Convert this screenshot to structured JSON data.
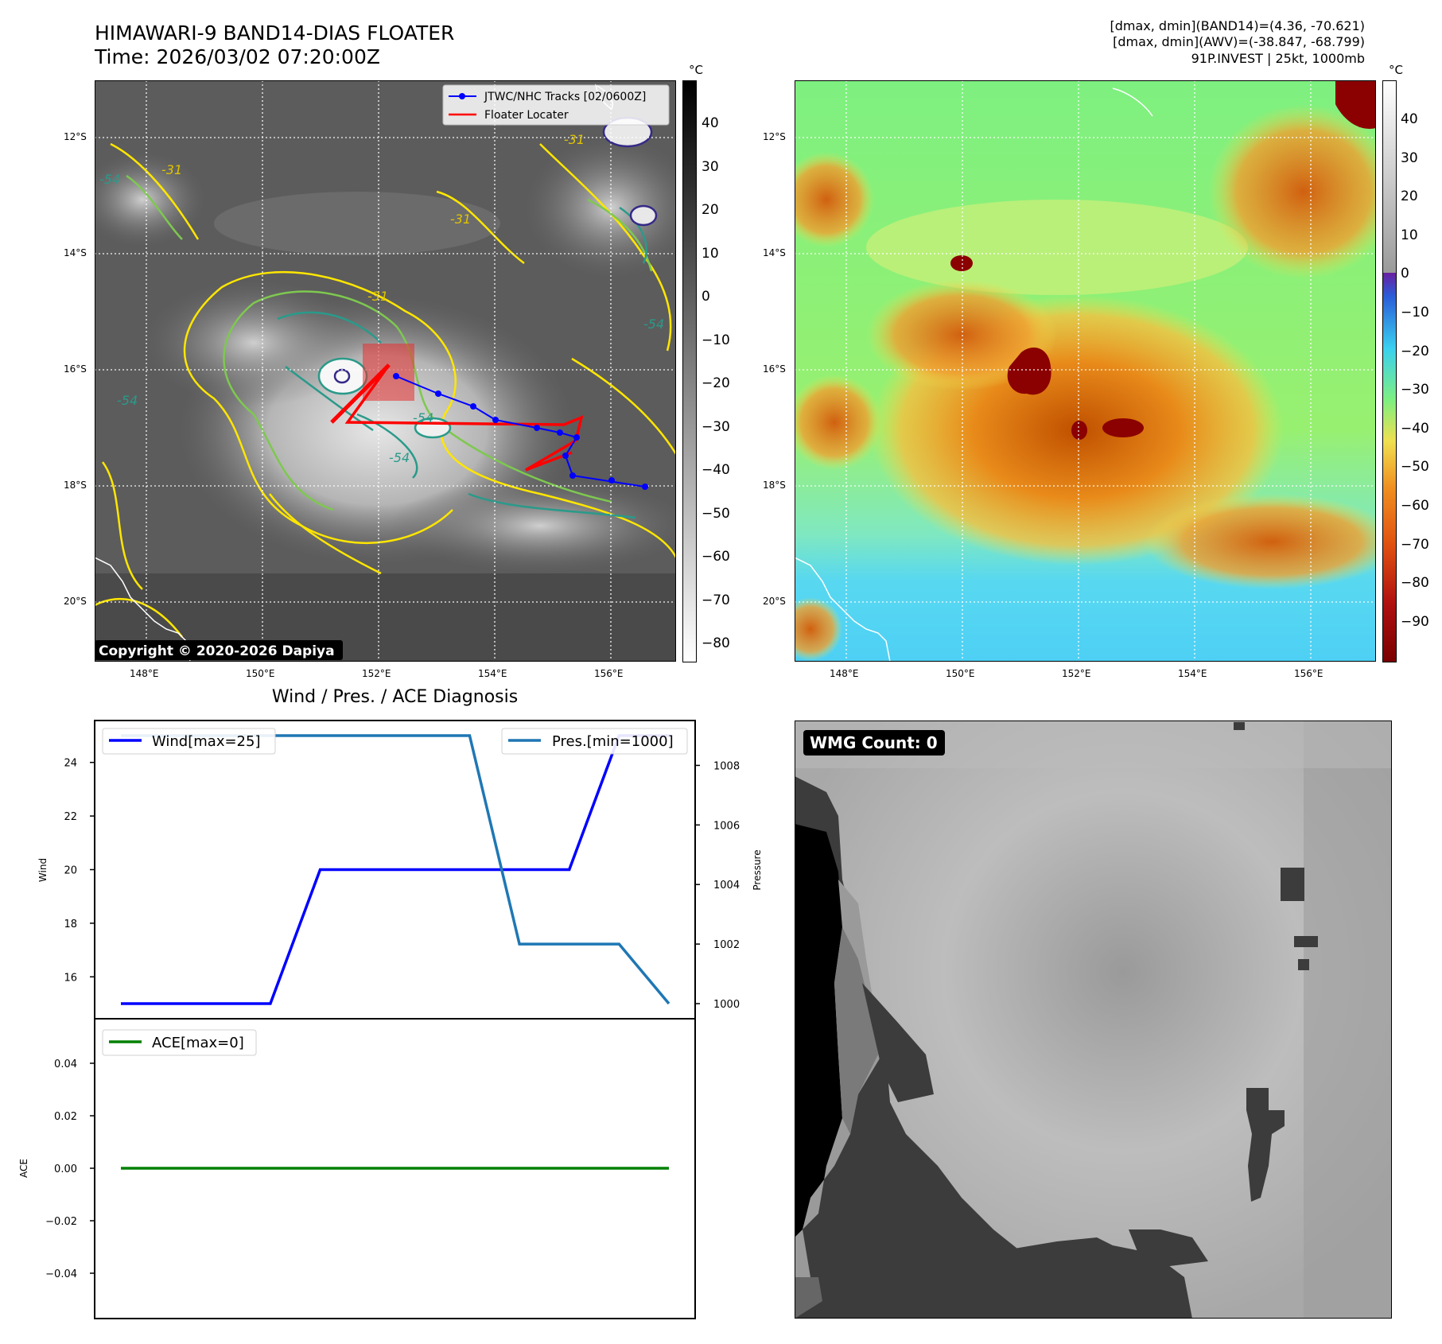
{
  "header": {
    "title_line1": "HIMAWARI-9 BAND14-DIAS FLOATER",
    "title_line2": "Time: 2026/03/02 07:20:00Z",
    "info_line1": "[dmax, dmin](BAND14)=(4.36, -70.621)",
    "info_line2": "[dmax, dmin](AWV)=(-38.847, -68.799)",
    "info_line3": "91P.INVEST | 25kt, 1000mb"
  },
  "map_panels": {
    "lat_labels": [
      "12°S",
      "14°S",
      "16°S",
      "18°S",
      "20°S"
    ],
    "lon_labels": [
      "148°E",
      "150°E",
      "152°E",
      "154°E",
      "156°E"
    ],
    "copyright": "Copyright © 2020-2026 Dapiya",
    "legend_tracks": "JTWC/NHC Tracks [02/0600Z]",
    "legend_floater": "Floater Locater",
    "contour_labels": [
      "-31",
      "-31",
      "-31",
      "-31",
      "-54",
      "-54",
      "-54",
      "-54",
      "-54"
    ],
    "colorbar_unit": "°C",
    "ir_colorbar_ticks": [
      "40",
      "30",
      "20",
      "10",
      "0",
      "−10",
      "−20",
      "−30",
      "−40",
      "−50",
      "−60",
      "−70",
      "−80"
    ],
    "enhanced_colorbar_ticks": [
      "40",
      "30",
      "20",
      "10",
      "0",
      "−10",
      "−20",
      "−30",
      "−40",
      "−50",
      "−60",
      "−70",
      "−80",
      "−90"
    ],
    "track_color": "#0000ff",
    "floater_color": "#ff0000"
  },
  "diagnosis": {
    "title": "Wind / Pres. / ACE Diagnosis",
    "wind_legend": "Wind[max=25]",
    "pres_legend": "Pres.[min=1000]",
    "ace_legend": "ACE[max=0]",
    "wind_ylabel": "Wind",
    "pres_ylabel": "Pressure",
    "ace_ylabel": "ACE",
    "wind_ticks": [
      "24",
      "22",
      "20",
      "18",
      "16"
    ],
    "pres_ticks": [
      "1008",
      "1006",
      "1004",
      "1002",
      "1000"
    ],
    "ace_ticks": [
      "0.04",
      "0.02",
      "0.00",
      "−0.02",
      "−0.04"
    ]
  },
  "wmg": {
    "label": "WMG Count: 0"
  },
  "chart_data": [
    {
      "type": "line",
      "title": "Wind / Pres. / ACE Diagnosis",
      "x": [
        0,
        1,
        2,
        3,
        4,
        5,
        6,
        7,
        8,
        9,
        10,
        11
      ],
      "ylabel": "Wind",
      "ylim": [
        14.5,
        25.5
      ],
      "y2label": "Pressure",
      "y2lim": [
        999.5,
        1009.5
      ],
      "series": [
        {
          "name": "Wind[max=25]",
          "axis": "left",
          "color": "#0000ff",
          "values": [
            15,
            15,
            15,
            15,
            20,
            20,
            20,
            20,
            20,
            20,
            25,
            25
          ]
        },
        {
          "name": "Pres.[min=1000]",
          "axis": "right",
          "color": "#1f77b4",
          "values": [
            1009,
            1009,
            1009,
            1009,
            1009,
            1009,
            1009,
            1009,
            1002,
            1002,
            1002,
            1000
          ]
        }
      ]
    },
    {
      "type": "line",
      "ylabel": "ACE",
      "ylim": [
        -0.055,
        0.055
      ],
      "x": [
        0,
        1,
        2,
        3,
        4,
        5,
        6,
        7,
        8,
        9,
        10,
        11
      ],
      "series": [
        {
          "name": "ACE[max=0]",
          "color": "#008000",
          "values": [
            0,
            0,
            0,
            0,
            0,
            0,
            0,
            0,
            0,
            0,
            0,
            0
          ]
        }
      ]
    }
  ]
}
